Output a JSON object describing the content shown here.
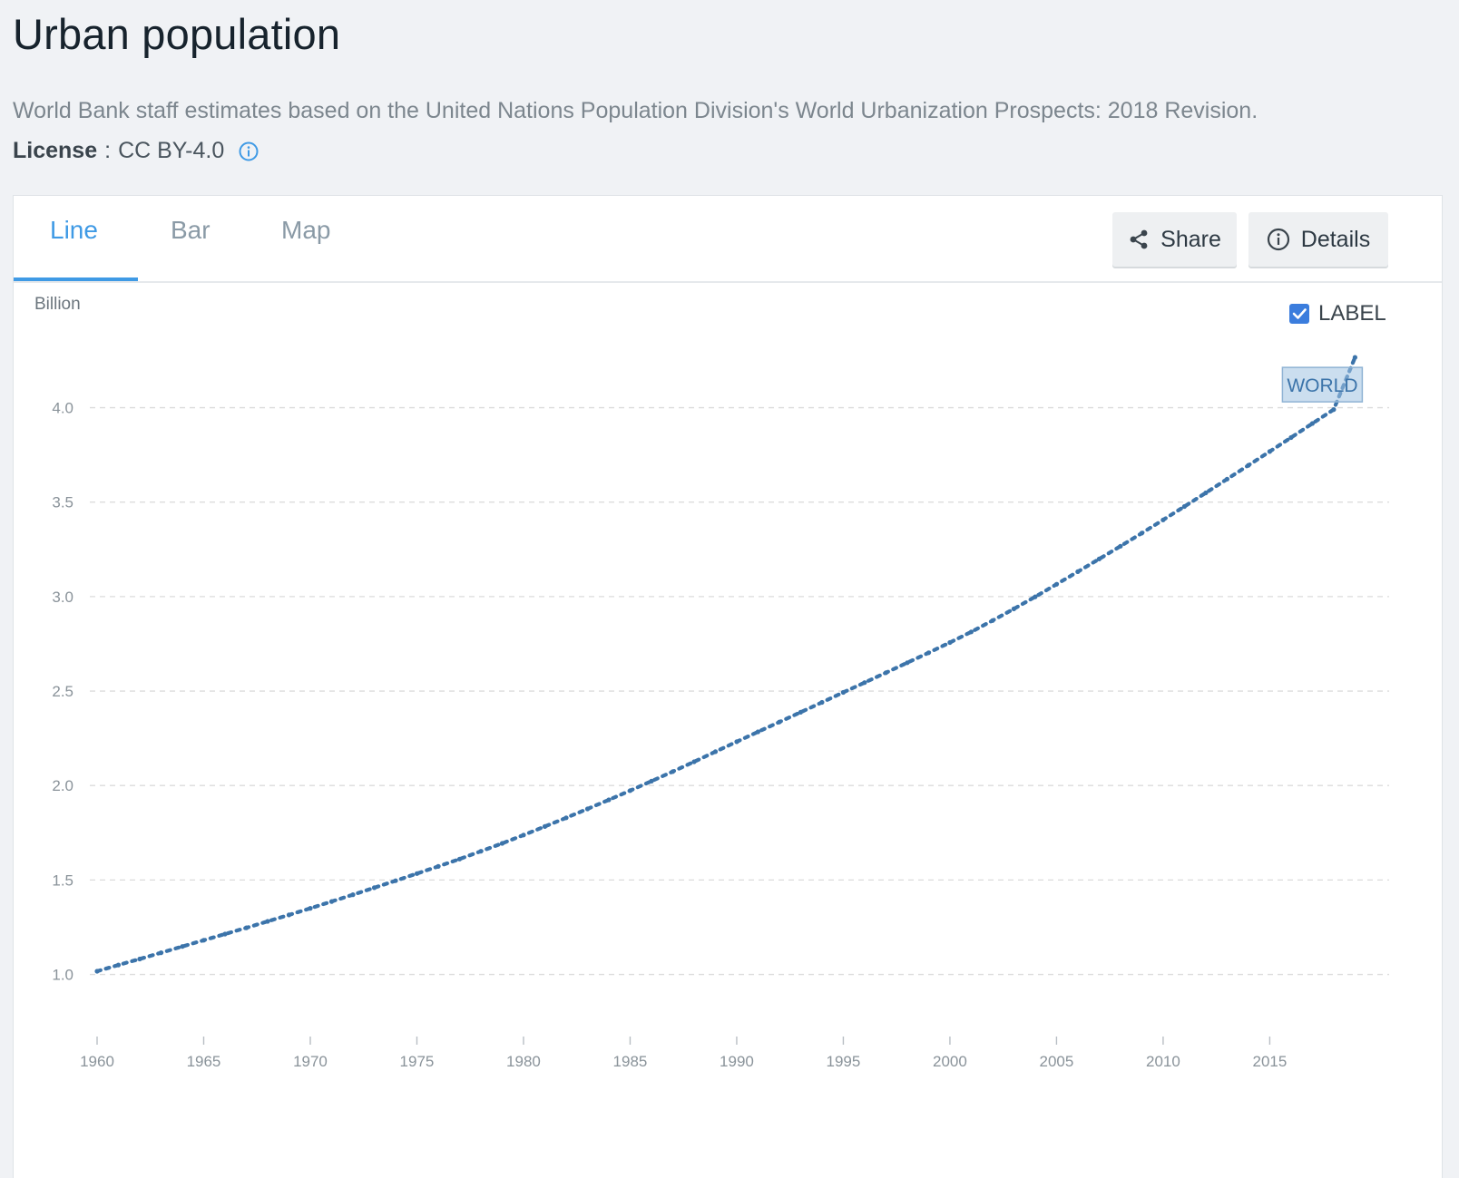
{
  "page": {
    "title": "Urban population",
    "source": "World Bank staff estimates based on the United Nations Population Division's World Urbanization Prospects: 2018 Revision.",
    "license_label": "License",
    "license_sep": ":",
    "license_value": "CC BY-4.0"
  },
  "tabs": [
    {
      "label": "Line",
      "active": true
    },
    {
      "label": "Bar",
      "active": false
    },
    {
      "label": "Map",
      "active": false
    }
  ],
  "toolbar": {
    "share_label": "Share",
    "details_label": "Details"
  },
  "icons": {
    "share": "share-icon",
    "details": "info-circle-icon",
    "license_info": "info-icon",
    "label_checkbox": "checkbox-checked-icon"
  },
  "colors": {
    "accent": "#3f9ae5",
    "series": "#3c74aa",
    "checkbox": "#3b7ddd"
  },
  "chart_data": {
    "type": "line",
    "style": "dotted",
    "unit_label": "Billion",
    "label_toggle": {
      "text": "LABEL",
      "checked": true
    },
    "series": [
      {
        "name": "WORLD",
        "x": [
          1960,
          1961,
          1962,
          1963,
          1964,
          1965,
          1966,
          1967,
          1968,
          1969,
          1970,
          1971,
          1972,
          1973,
          1974,
          1975,
          1976,
          1977,
          1978,
          1979,
          1980,
          1981,
          1982,
          1983,
          1984,
          1985,
          1986,
          1987,
          1988,
          1989,
          1990,
          1991,
          1992,
          1993,
          1994,
          1995,
          1996,
          1997,
          1998,
          1999,
          2000,
          2001,
          2002,
          2003,
          2004,
          2005,
          2006,
          2007,
          2008,
          2009,
          2010,
          2011,
          2012,
          2013,
          2014,
          2015,
          2016,
          2017,
          2018,
          2019
        ],
        "values": [
          1.017,
          1.05,
          1.082,
          1.115,
          1.148,
          1.181,
          1.214,
          1.247,
          1.281,
          1.315,
          1.35,
          1.386,
          1.422,
          1.459,
          1.496,
          1.534,
          1.572,
          1.611,
          1.652,
          1.694,
          1.738,
          1.783,
          1.829,
          1.876,
          1.924,
          1.973,
          2.023,
          2.074,
          2.126,
          2.179,
          2.232,
          2.284,
          2.336,
          2.388,
          2.44,
          2.493,
          2.545,
          2.597,
          2.65,
          2.703,
          2.757,
          2.813,
          2.873,
          2.935,
          2.999,
          3.065,
          3.132,
          3.199,
          3.267,
          3.336,
          3.406,
          3.477,
          3.549,
          3.622,
          3.695,
          3.768,
          3.842,
          3.916,
          3.99,
          4.266
        ]
      }
    ],
    "xticks": [
      1960,
      1965,
      1970,
      1975,
      1980,
      1985,
      1990,
      1995,
      2000,
      2005,
      2010,
      2015
    ],
    "yticks": [
      1.0,
      1.5,
      2.0,
      2.5,
      3.0,
      3.5,
      4.0
    ],
    "ytick_labels": [
      "1.0",
      "1.5",
      "2.0",
      "2.5",
      "3.0",
      "3.5",
      "4.0"
    ],
    "xlim": [
      1960,
      2020.6
    ],
    "ylim": [
      0.705,
      4.425
    ],
    "grid": true,
    "series_label_placement": "end"
  }
}
